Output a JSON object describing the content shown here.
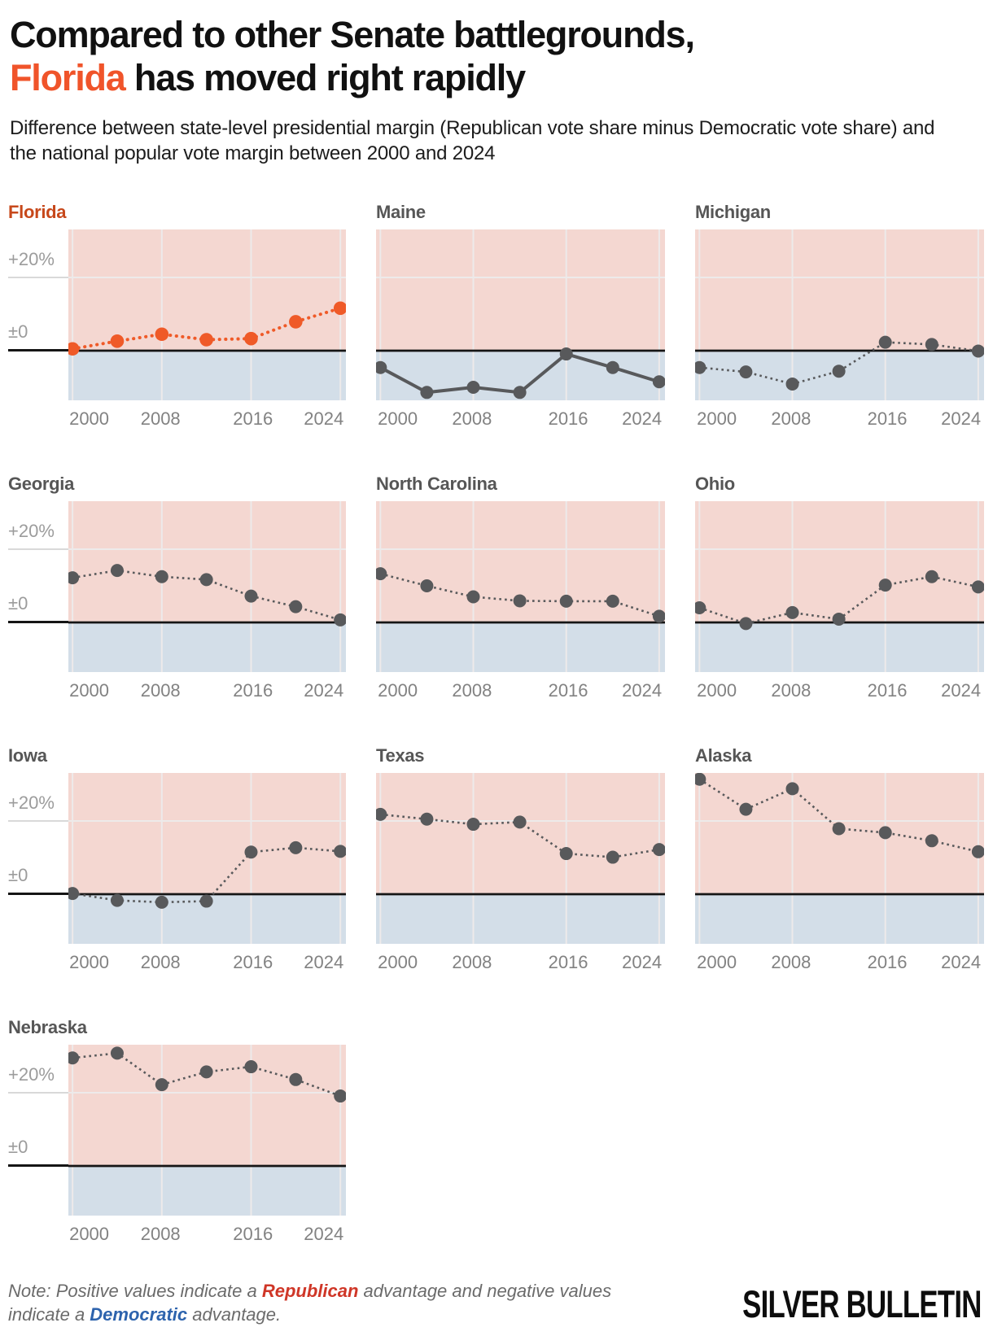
{
  "header": {
    "title_line1": "Compared to other Senate battlegrounds,",
    "title_accent": "Florida",
    "title_rest": " has moved right rapidly",
    "subtitle": "Difference between state-level presidential margin (Republican vote share minus Democratic vote share) and the national popular vote margin between 2000 and 2024"
  },
  "footer": {
    "note_prefix": "Note: Positive values indicate a ",
    "note_republican": "Republican",
    "note_middle": " advantage and negative values indicate a ",
    "note_democratic": "Democratic",
    "note_suffix": " advantage.",
    "logo": "SILVER BULLETIN"
  },
  "colors": {
    "headline_accent": "#f0542a",
    "florida_line": "#ef5a28",
    "florida_title": "#c7481b",
    "state_line": "#58595b",
    "pink_region": "#f4d7d1",
    "blue_region": "#d3dee8",
    "gridline": "#edeaea",
    "gutter_gridline": "#d9d9d9",
    "zero_line": "#151515",
    "axis_label": "#9c9c9c",
    "tick_label": "#828282"
  },
  "chart_data": {
    "type": "line",
    "title": "Compared to other Senate battlegrounds, Florida has moved right rapidly",
    "subtitle": "Difference between state-level presidential margin (Republican vote share minus Democratic vote share) and the national popular vote margin between 2000 and 2024",
    "x": [
      2000,
      2004,
      2008,
      2012,
      2016,
      2020,
      2024
    ],
    "x_tick_labels": [
      "2000",
      "2008",
      "2016",
      "2024"
    ],
    "x_tick_label_pos_pct": [
      7.5,
      33.2,
      66.5,
      92.0
    ],
    "y_axis_labels": {
      "plus20": "+20%",
      "zero": "±0"
    },
    "ylim": [
      -13.5,
      33
    ],
    "gridline_years": [
      2000,
      2008,
      2016,
      2024
    ],
    "grid": true,
    "legend_position": "none",
    "units": "percentage points (Republican minus Democratic, relative to national margin)",
    "series": [
      {
        "name": "Florida",
        "highlight": true,
        "line_style": "dotted",
        "values": [
          0.5,
          2.6,
          4.5,
          3.0,
          3.3,
          7.9,
          11.6
        ]
      },
      {
        "name": "Maine",
        "highlight": false,
        "line_style": "solid",
        "values": [
          -4.6,
          -11.4,
          -10.0,
          -11.4,
          -0.9,
          -4.6,
          -8.5
        ]
      },
      {
        "name": "Michigan",
        "highlight": false,
        "line_style": "dotted",
        "values": [
          -4.6,
          -5.8,
          -9.1,
          -5.6,
          2.3,
          1.7,
          -0.1
        ]
      },
      {
        "name": "Georgia",
        "highlight": false,
        "line_style": "dotted",
        "values": [
          12.2,
          14.2,
          12.5,
          11.7,
          7.2,
          4.3,
          0.7
        ]
      },
      {
        "name": "North Carolina",
        "highlight": false,
        "line_style": "dotted",
        "values": [
          13.3,
          10.0,
          7.0,
          5.9,
          5.8,
          5.8,
          1.7
        ]
      },
      {
        "name": "Ohio",
        "highlight": false,
        "line_style": "dotted",
        "values": [
          4.0,
          -0.3,
          2.7,
          0.9,
          10.2,
          12.5,
          9.7
        ]
      },
      {
        "name": "Iowa",
        "highlight": false,
        "line_style": "dotted",
        "values": [
          0.2,
          -1.7,
          -2.2,
          -1.9,
          11.5,
          12.7,
          11.7
        ]
      },
      {
        "name": "Texas",
        "highlight": false,
        "line_style": "dotted",
        "values": [
          21.8,
          20.5,
          19.1,
          19.7,
          11.1,
          10.1,
          12.2
        ]
      },
      {
        "name": "Alaska",
        "highlight": false,
        "line_style": "dotted",
        "values": [
          31.4,
          23.2,
          28.8,
          17.9,
          16.8,
          14.6,
          11.6
        ]
      },
      {
        "name": "Nebraska",
        "highlight": false,
        "line_style": "dotted",
        "values": [
          29.5,
          30.8,
          22.2,
          25.7,
          27.1,
          23.6,
          19.1
        ]
      }
    ]
  }
}
